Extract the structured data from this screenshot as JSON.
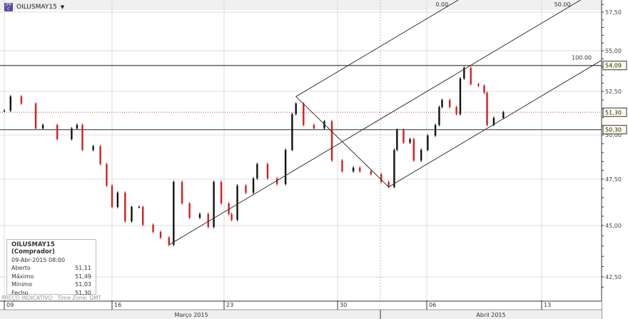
{
  "header": {
    "symbol": "OILUSMAY15",
    "logo_text": "JPR C"
  },
  "tooltip": {
    "title": "OILUSMAY15 (Comprador)",
    "datetime": "09-Abr-2015 08:00",
    "rows": [
      {
        "label": "Aberto",
        "value": "51,11"
      },
      {
        "label": "Máximo",
        "value": "51,49"
      },
      {
        "label": "Mínimo",
        "value": "51,03"
      },
      {
        "label": "Fecho",
        "value": "51,30"
      }
    ]
  },
  "footer": {
    "price_note": "PREÇO INDICATIVO",
    "timezone": "Time Zone: GMT"
  },
  "chart_data": {
    "type": "candlestick",
    "symbol": "OILUSMAY15",
    "ylim": [
      41.5,
      58.5
    ],
    "y_ticks": [
      "57,50",
      "55,00",
      "52,50",
      "50,00",
      "47,50",
      "45,00",
      "42,50"
    ],
    "y_tick_values": [
      57.5,
      55,
      52.5,
      50,
      47.5,
      45,
      42.5
    ],
    "x_ticks": [
      {
        "label": "09",
        "date": "2015-03-09"
      },
      {
        "label": "16",
        "date": "2015-03-16"
      },
      {
        "label": "23",
        "date": "2015-03-23"
      },
      {
        "label": "30",
        "date": "2015-03-30"
      },
      {
        "label": "06",
        "date": "2015-04-06"
      },
      {
        "label": "13",
        "date": "2015-04-13"
      }
    ],
    "months": [
      {
        "label": "Março 2015"
      },
      {
        "label": "Abril 2015"
      }
    ],
    "grid": true,
    "colors": {
      "up": "#111111",
      "down": "#d22020",
      "line": "#333333",
      "current": "#d04040"
    },
    "closes": [
      [
        "2015-03-09 00:00",
        51.39
      ],
      [
        "2015-03-09 07:00",
        52.21
      ],
      [
        "2015-03-09 19:00",
        51.8
      ],
      [
        "2015-03-10 11:00",
        50.37
      ],
      [
        "2015-03-10 19:00",
        50.57
      ],
      [
        "2015-03-11 11:00",
        49.76
      ],
      [
        "2015-03-12 03:00",
        50.37
      ],
      [
        "2015-03-12 09:00",
        50.57
      ],
      [
        "2015-03-12 15:00",
        49.15
      ],
      [
        "2015-03-13 03:00",
        49.36
      ],
      [
        "2015-03-13 11:00",
        48.35
      ],
      [
        "2015-03-13 18:00",
        47.15
      ],
      [
        "2015-03-16 00:00",
        46.0
      ],
      [
        "2015-03-16 06:00",
        46.77
      ],
      [
        "2015-03-16 14:00",
        45.23
      ],
      [
        "2015-03-16 21:00",
        46.0
      ],
      [
        "2015-03-17 05:00",
        46.0
      ],
      [
        "2015-03-17 09:00",
        45.04
      ],
      [
        "2015-03-17 20:00",
        44.69
      ],
      [
        "2015-03-18 04:00",
        44.41
      ],
      [
        "2015-03-18 13:00",
        44.06
      ],
      [
        "2015-03-18 18:00",
        47.35
      ],
      [
        "2015-03-19 03:00",
        46.19
      ],
      [
        "2015-03-19 11:00",
        45.42
      ],
      [
        "2015-03-19 22:00",
        45.62
      ],
      [
        "2015-03-20 07:00",
        44.93
      ],
      [
        "2015-03-20 13:00",
        47.35
      ],
      [
        "2015-03-20 21:00",
        46.19
      ],
      [
        "2015-03-23 05:00",
        45.62
      ],
      [
        "2015-03-23 08:00",
        45.3
      ],
      [
        "2015-03-23 14:00",
        47.15
      ],
      [
        "2015-03-23 23:00",
        46.77
      ],
      [
        "2015-03-24 07:00",
        47.54
      ],
      [
        "2015-03-24 11:00",
        48.35
      ],
      [
        "2015-03-24 22:00",
        47.54
      ],
      [
        "2015-03-25 08:00",
        47.23
      ],
      [
        "2015-03-25 17:00",
        49.15
      ],
      [
        "2015-03-26 00:00",
        51.19
      ],
      [
        "2015-03-26 04:00",
        51.8
      ],
      [
        "2015-03-26 12:00",
        50.57
      ],
      [
        "2015-03-26 23:00",
        50.37
      ],
      [
        "2015-03-27 10:00",
        50.78
      ],
      [
        "2015-03-27 18:00",
        48.55
      ],
      [
        "2015-03-30 05:00",
        47.94
      ],
      [
        "2015-03-30 17:00",
        48.15
      ],
      [
        "2015-03-31 00:00",
        47.94
      ],
      [
        "2015-03-31 12:00",
        47.78
      ],
      [
        "2015-03-31 23:00",
        47.35
      ],
      [
        "2015-04-01 07:00",
        47.08
      ],
      [
        "2015-04-01 13:00",
        49.15
      ],
      [
        "2015-04-01 16:00",
        50.29
      ],
      [
        "2015-04-01 23:00",
        49.56
      ],
      [
        "2015-04-02 06:00",
        49.76
      ],
      [
        "2015-04-02 10:00",
        48.55
      ],
      [
        "2015-04-02 18:00",
        49.15
      ],
      [
        "2015-04-06 01:00",
        49.96
      ],
      [
        "2015-04-06 09:00",
        50.57
      ],
      [
        "2015-04-06 13:00",
        51.6
      ],
      [
        "2015-04-06 16:00",
        52.0
      ],
      [
        "2015-04-07 00:00",
        51.6
      ],
      [
        "2015-04-07 07:00",
        51.19
      ],
      [
        "2015-04-07 11:00",
        53.29
      ],
      [
        "2015-04-07 15:00",
        53.95
      ],
      [
        "2015-04-07 22:00",
        52.94
      ],
      [
        "2015-04-08 06:00",
        52.85
      ],
      [
        "2015-04-08 12:00",
        52.42
      ],
      [
        "2015-04-08 15:00",
        50.57
      ],
      [
        "2015-04-08 22:00",
        50.98
      ],
      [
        "2015-04-09 08:00",
        51.3
      ]
    ],
    "horizontal_levels": [
      {
        "value": 54.09,
        "label": "54,09"
      },
      {
        "value": 50.3,
        "label": "50,30"
      }
    ],
    "current_price": {
      "value": 51.3,
      "label": "51,30"
    },
    "pitchfork": {
      "pivots": [
        [
          "2015-03-18 13:00",
          44.06
        ],
        [
          "2015-03-26 04:00",
          52.2
        ],
        [
          "2015-04-01 07:00",
          47.08
        ]
      ],
      "labels": [
        "0.00",
        "50.00",
        "100.00"
      ]
    }
  }
}
